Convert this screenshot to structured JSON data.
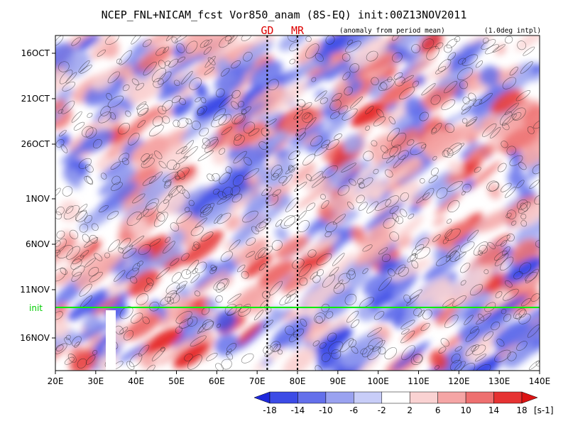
{
  "chart_data": {
    "type": "heatmap",
    "title": "NCEP_FNL+NICAM_fcst Vor850_anam (8S-EQ) init:00Z13NOV2011",
    "subtitle": "(anomaly from period mean)",
    "note": "(1.0deg intpl)",
    "x_ticks": [
      "20E",
      "30E",
      "40E",
      "50E",
      "60E",
      "70E",
      "80E",
      "90E",
      "100E",
      "110E",
      "120E",
      "130E",
      "140E"
    ],
    "xlim": [
      20,
      140
    ],
    "y_ticks": [
      "16OCT",
      "21OCT",
      "26OCT",
      "1NOV",
      "6NOV",
      "11NOV",
      "16NOV"
    ],
    "init_label": "init",
    "markers": [
      {
        "label": "GD",
        "lon": 72.5
      },
      {
        "label": "MR",
        "lon": 80
      }
    ],
    "colorbar": {
      "levels": [
        "-18",
        "-14",
        "-10",
        "-6",
        "-2",
        "2",
        "6",
        "10",
        "14",
        "18"
      ],
      "unit": "[s-1]",
      "colors": [
        "#1e28dc",
        "#3c4be6",
        "#6470eb",
        "#9aa2f0",
        "#c8cdf8",
        "#ffffff",
        "#fad2d2",
        "#f5a5a5",
        "#ee7070",
        "#e63232",
        "#dc1414"
      ]
    }
  },
  "colors": {
    "init_line": "#00ee00",
    "marker_text": "#dd0000"
  }
}
